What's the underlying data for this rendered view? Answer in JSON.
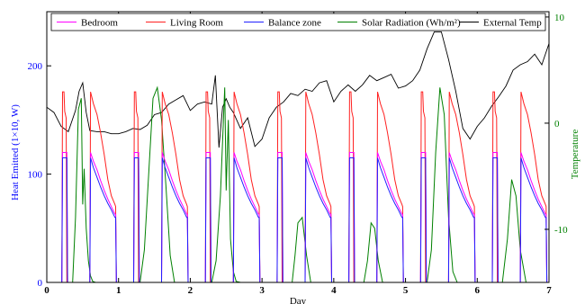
{
  "chart_data": {
    "type": "line",
    "xlabel": "Day",
    "ylabel_left": "Heat Emitted (1×10, W)",
    "ylabel_right": "Temperature",
    "xlim": [
      0,
      7
    ],
    "ylim_left": [
      0,
      250
    ],
    "ylim_right": [
      -15,
      10.5
    ],
    "x_ticks": [
      0,
      1,
      2,
      3,
      4,
      5,
      6,
      7
    ],
    "y_ticks_left": [
      0,
      100,
      200
    ],
    "y_ticks_right": [
      -10,
      0,
      10
    ],
    "grid": false,
    "legend_position": "top",
    "colors": {
      "bedroom": "#ff00ff",
      "living_room": "#ff2020",
      "balance_zone": "#2020ff",
      "solar": "#008000",
      "external_temp": "#000000",
      "left_axis": "#0000ff",
      "right_axis": "#008000"
    },
    "series": [
      {
        "name": "Bedroom",
        "axis": "left",
        "x": [
          0,
          0.21,
          0.22,
          0.28,
          0.29,
          0.6,
          0.61,
          0.65,
          0.7,
          0.75,
          0.8,
          0.85,
          0.9,
          0.95,
          0.96,
          0.97,
          1.21,
          1.22,
          1.28,
          1.29,
          1.6,
          1.61,
          1.65,
          1.7,
          1.75,
          1.8,
          1.85,
          1.9,
          1.95,
          1.96,
          1.97,
          2.21,
          2.22,
          2.28,
          2.29,
          2.6,
          2.61,
          2.65,
          2.7,
          2.75,
          2.8,
          2.85,
          2.9,
          2.95,
          2.96,
          2.97,
          3.21,
          3.22,
          3.28,
          3.29,
          3.6,
          3.61,
          3.65,
          3.7,
          3.75,
          3.8,
          3.85,
          3.9,
          3.95,
          3.96,
          3.97,
          4.21,
          4.22,
          4.28,
          4.29,
          4.6,
          4.61,
          4.65,
          4.7,
          4.75,
          4.8,
          4.85,
          4.9,
          4.95,
          4.96,
          4.97,
          5.21,
          5.22,
          5.28,
          5.29,
          5.6,
          5.61,
          5.65,
          5.7,
          5.75,
          5.8,
          5.85,
          5.9,
          5.95,
          5.96,
          5.97,
          6.21,
          6.22,
          6.28,
          6.29,
          6.6,
          6.61,
          6.65,
          6.7,
          6.75,
          6.8,
          6.85,
          6.9,
          6.95,
          6.96,
          6.97
        ],
        "values": [
          0,
          0,
          120,
          120,
          0,
          0,
          120,
          112,
          104,
          94,
          85,
          77,
          70,
          63,
          63,
          0,
          0,
          120,
          120,
          0,
          0,
          120,
          112,
          104,
          94,
          85,
          77,
          70,
          63,
          63,
          0,
          0,
          120,
          120,
          0,
          0,
          120,
          112,
          104,
          94,
          85,
          77,
          70,
          63,
          63,
          0,
          0,
          120,
          120,
          0,
          0,
          120,
          112,
          104,
          94,
          85,
          77,
          70,
          63,
          63,
          0,
          0,
          120,
          120,
          0,
          0,
          120,
          112,
          104,
          94,
          85,
          77,
          70,
          63,
          63,
          0,
          0,
          120,
          120,
          0,
          0,
          120,
          112,
          104,
          94,
          85,
          77,
          70,
          63,
          63,
          0,
          0,
          120,
          120,
          0,
          0,
          120,
          112,
          104,
          94,
          85,
          77,
          70,
          63,
          63,
          0
        ]
      },
      {
        "name": "Living Room",
        "axis": "left",
        "x": [
          0,
          0.21,
          0.22,
          0.24,
          0.25,
          0.27,
          0.28,
          0.6,
          0.61,
          0.65,
          0.7,
          0.75,
          0.8,
          0.85,
          0.9,
          0.95,
          0.96,
          0.97,
          1.21,
          1.22,
          1.24,
          1.25,
          1.27,
          1.28,
          1.6,
          1.61,
          1.65,
          1.7,
          1.75,
          1.8,
          1.85,
          1.9,
          1.95,
          1.96,
          1.97,
          2.21,
          2.22,
          2.24,
          2.25,
          2.27,
          2.28,
          2.6,
          2.61,
          2.65,
          2.7,
          2.75,
          2.8,
          2.85,
          2.9,
          2.95,
          2.96,
          2.97,
          3.21,
          3.22,
          3.24,
          3.25,
          3.27,
          3.28,
          3.6,
          3.61,
          3.65,
          3.7,
          3.75,
          3.8,
          3.85,
          3.9,
          3.95,
          3.96,
          3.97,
          4.21,
          4.22,
          4.24,
          4.25,
          4.27,
          4.28,
          4.6,
          4.61,
          4.65,
          4.7,
          4.75,
          4.8,
          4.85,
          4.9,
          4.95,
          4.96,
          4.97,
          5.21,
          5.22,
          5.24,
          5.25,
          5.27,
          5.28,
          5.6,
          5.61,
          5.65,
          5.7,
          5.75,
          5.8,
          5.85,
          5.9,
          5.95,
          5.96,
          5.97,
          6.21,
          6.22,
          6.24,
          6.25,
          6.27,
          6.28,
          6.6,
          6.61,
          6.65,
          6.7,
          6.75,
          6.8,
          6.85,
          6.9,
          6.95,
          6.96,
          6.97
        ],
        "values": [
          0,
          0,
          176,
          176,
          158,
          152,
          0,
          0,
          176,
          165,
          155,
          138,
          118,
          95,
          80,
          72,
          70,
          0,
          0,
          176,
          176,
          158,
          152,
          0,
          0,
          176,
          165,
          155,
          138,
          118,
          95,
          80,
          72,
          70,
          0,
          0,
          176,
          176,
          158,
          152,
          0,
          0,
          176,
          165,
          155,
          138,
          118,
          95,
          80,
          72,
          70,
          0,
          0,
          176,
          176,
          158,
          152,
          0,
          0,
          176,
          165,
          155,
          138,
          118,
          95,
          80,
          72,
          70,
          0,
          0,
          176,
          176,
          158,
          152,
          0,
          0,
          176,
          165,
          155,
          138,
          118,
          95,
          80,
          72,
          70,
          0,
          0,
          176,
          176,
          158,
          152,
          0,
          0,
          176,
          165,
          155,
          138,
          118,
          95,
          80,
          72,
          70,
          0,
          0,
          176,
          176,
          158,
          152,
          0,
          0,
          176,
          165,
          155,
          138,
          118,
          95,
          80,
          72,
          70,
          0
        ]
      },
      {
        "name": "Balance zone",
        "axis": "left",
        "x": [
          0,
          0.21,
          0.22,
          0.28,
          0.29,
          0.6,
          0.61,
          0.65,
          0.7,
          0.75,
          0.8,
          0.85,
          0.9,
          0.95,
          0.96,
          0.97,
          1.21,
          1.22,
          1.28,
          1.29,
          1.6,
          1.61,
          1.65,
          1.7,
          1.75,
          1.8,
          1.85,
          1.9,
          1.95,
          1.96,
          1.97,
          2.21,
          2.22,
          2.28,
          2.29,
          2.6,
          2.61,
          2.65,
          2.7,
          2.75,
          2.8,
          2.85,
          2.9,
          2.95,
          2.96,
          2.97,
          3.21,
          3.22,
          3.28,
          3.29,
          3.6,
          3.61,
          3.65,
          3.7,
          3.75,
          3.8,
          3.85,
          3.9,
          3.95,
          3.96,
          3.97,
          4.21,
          4.22,
          4.28,
          4.29,
          4.6,
          4.61,
          4.65,
          4.7,
          4.75,
          4.8,
          4.85,
          4.9,
          4.95,
          4.96,
          4.97,
          5.21,
          5.22,
          5.28,
          5.29,
          5.6,
          5.61,
          5.65,
          5.7,
          5.75,
          5.8,
          5.85,
          5.9,
          5.95,
          5.96,
          5.97,
          6.21,
          6.22,
          6.28,
          6.29,
          6.6,
          6.61,
          6.65,
          6.7,
          6.75,
          6.8,
          6.85,
          6.9,
          6.95,
          6.96,
          6.97
        ],
        "values": [
          0,
          0,
          115,
          115,
          0,
          0,
          115,
          106,
          97,
          88,
          80,
          73,
          67,
          60,
          60,
          0,
          0,
          115,
          115,
          0,
          0,
          115,
          106,
          97,
          88,
          80,
          73,
          67,
          60,
          60,
          0,
          0,
          115,
          115,
          0,
          0,
          115,
          106,
          97,
          88,
          80,
          73,
          67,
          60,
          60,
          0,
          0,
          115,
          115,
          0,
          0,
          115,
          106,
          97,
          88,
          80,
          73,
          67,
          60,
          60,
          0,
          0,
          115,
          115,
          0,
          0,
          115,
          106,
          97,
          88,
          80,
          73,
          67,
          60,
          60,
          0,
          0,
          115,
          115,
          0,
          0,
          115,
          106,
          97,
          88,
          80,
          73,
          67,
          60,
          60,
          0,
          0,
          115,
          115,
          0,
          0,
          115,
          106,
          97,
          88,
          80,
          73,
          67,
          60,
          60,
          0
        ]
      },
      {
        "name": "Solar Radiation (Wh/m²)",
        "axis": "left",
        "x": [
          0,
          0.36,
          0.4,
          0.44,
          0.48,
          0.5,
          0.52,
          0.55,
          0.58,
          0.61,
          0.64,
          0.68,
          0.72,
          1.3,
          1.36,
          1.42,
          1.48,
          1.54,
          1.6,
          1.66,
          1.72,
          1.78,
          2.3,
          2.36,
          2.42,
          2.48,
          2.5,
          2.53,
          2.56,
          2.6,
          2.64,
          2.7,
          3.42,
          3.46,
          3.5,
          3.56,
          3.62,
          3.68,
          4.42,
          4.47,
          4.52,
          4.57,
          4.62,
          4.68,
          5.3,
          5.36,
          5.42,
          5.48,
          5.54,
          5.6,
          5.66,
          5.72,
          6.35,
          6.42,
          6.48,
          6.54,
          6.6,
          6.68,
          7
        ],
        "values": [
          0,
          0,
          60,
          160,
          170,
          72,
          105,
          50,
          20,
          6,
          1,
          0,
          0,
          0,
          30,
          100,
          170,
          180,
          150,
          90,
          25,
          0,
          0,
          20,
          80,
          180,
          85,
          150,
          40,
          10,
          1,
          0,
          0,
          25,
          55,
          60,
          25,
          0,
          0,
          20,
          55,
          50,
          20,
          0,
          0,
          30,
          120,
          180,
          155,
          60,
          10,
          0,
          0,
          40,
          95,
          80,
          30,
          0,
          0
        ]
      },
      {
        "name": "External Temp",
        "axis": "right",
        "x": [
          0,
          0.1,
          0.2,
          0.3,
          0.4,
          0.45,
          0.5,
          0.55,
          0.6,
          0.7,
          0.8,
          0.9,
          1.0,
          1.1,
          1.2,
          1.3,
          1.4,
          1.5,
          1.6,
          1.7,
          1.8,
          1.9,
          2.0,
          2.1,
          2.2,
          2.3,
          2.35,
          2.4,
          2.45,
          2.5,
          2.55,
          2.6,
          2.7,
          2.8,
          2.9,
          3.0,
          3.1,
          3.2,
          3.3,
          3.4,
          3.5,
          3.6,
          3.7,
          3.8,
          3.9,
          4.0,
          4.1,
          4.2,
          4.3,
          4.4,
          4.5,
          4.6,
          4.7,
          4.8,
          4.9,
          5.0,
          5.1,
          5.2,
          5.3,
          5.4,
          5.5,
          5.6,
          5.7,
          5.8,
          5.9,
          6.0,
          6.1,
          6.2,
          6.3,
          6.4,
          6.5,
          6.6,
          6.7,
          6.8,
          6.9,
          7.0
        ],
        "values": [
          1.5,
          1.0,
          -0.3,
          -0.8,
          1.2,
          3.0,
          3.8,
          1.0,
          -0.7,
          -0.8,
          -0.8,
          -1.0,
          -1.0,
          -0.8,
          -0.5,
          -0.6,
          -0.2,
          0.8,
          1.0,
          1.8,
          2.2,
          2.6,
          1.2,
          1.8,
          2.0,
          1.8,
          4.5,
          -2.3,
          1.5,
          2.3,
          1.5,
          1.0,
          -0.5,
          0.5,
          -2.2,
          -1.5,
          0.5,
          1.5,
          2.0,
          2.8,
          2.6,
          3.2,
          3.0,
          3.8,
          4.0,
          2.0,
          3.0,
          3.6,
          3.0,
          3.6,
          4.5,
          4.0,
          4.3,
          4.6,
          3.3,
          3.5,
          4.0,
          5.0,
          7.0,
          8.6,
          8.6,
          6.0,
          3.0,
          -0.5,
          -1.5,
          -0.3,
          0.5,
          1.6,
          2.5,
          3.5,
          5.0,
          5.5,
          5.8,
          6.5,
          5.5,
          7.5
        ]
      }
    ]
  }
}
